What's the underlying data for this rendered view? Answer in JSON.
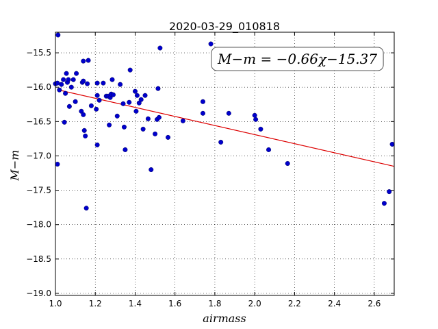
{
  "chart_data": {
    "type": "scatter",
    "title": "2020-03-29_010818",
    "xlabel": "airmass",
    "ylabel": "M−m",
    "xlim": [
      1.0,
      2.7
    ],
    "ylim": [
      -19.03,
      -15.2
    ],
    "y_inverted": true,
    "x_ticks": [
      1.0,
      1.2,
      1.4,
      1.6,
      1.8,
      2.0,
      2.2,
      2.4,
      2.6
    ],
    "x_tick_labels": [
      "1.0",
      "1.2",
      "1.4",
      "1.6",
      "1.8",
      "2.0",
      "2.2",
      "2.4",
      "2.6"
    ],
    "y_ticks": [
      -15.5,
      -16.0,
      -16.5,
      -17.0,
      -17.5,
      -18.0,
      -18.5,
      -19.0
    ],
    "y_tick_labels": [
      "−15.5",
      "−16.0",
      "−16.5",
      "−17.0",
      "−17.5",
      "−18.0",
      "−18.5",
      "−19.0"
    ],
    "grid": true,
    "colors": {
      "points": "#0000cc",
      "fit_line": "#dd0000"
    },
    "annotation": "M−m = −0.66χ−15.37",
    "fit": {
      "slope": -0.66,
      "intercept": -15.37
    },
    "series": [
      {
        "points": [
          [
            1.0,
            -15.95
          ],
          [
            1.01,
            -17.12
          ],
          [
            1.01,
            -15.94
          ],
          [
            1.013,
            -15.24
          ],
          [
            1.02,
            -16.04
          ],
          [
            1.03,
            -15.96
          ],
          [
            1.04,
            -15.89
          ],
          [
            1.045,
            -16.51
          ],
          [
            1.05,
            -16.09
          ],
          [
            1.055,
            -15.8
          ],
          [
            1.06,
            -15.93
          ],
          [
            1.065,
            -15.89
          ],
          [
            1.07,
            -16.28
          ],
          [
            1.08,
            -16.0
          ],
          [
            1.09,
            -15.89
          ],
          [
            1.1,
            -16.21
          ],
          [
            1.105,
            -15.8
          ],
          [
            1.13,
            -16.35
          ],
          [
            1.135,
            -15.93
          ],
          [
            1.14,
            -15.91
          ],
          [
            1.14,
            -16.4
          ],
          [
            1.14,
            -15.62
          ],
          [
            1.145,
            -16.63
          ],
          [
            1.15,
            -16.71
          ],
          [
            1.155,
            -17.76
          ],
          [
            1.16,
            -15.95
          ],
          [
            1.165,
            -15.61
          ],
          [
            1.18,
            -16.27
          ],
          [
            1.205,
            -16.32
          ],
          [
            1.21,
            -15.94
          ],
          [
            1.21,
            -16.12
          ],
          [
            1.21,
            -16.84
          ],
          [
            1.22,
            -16.19
          ],
          [
            1.24,
            -15.94
          ],
          [
            1.255,
            -16.13
          ],
          [
            1.265,
            -16.13
          ],
          [
            1.27,
            -16.55
          ],
          [
            1.275,
            -16.15
          ],
          [
            1.28,
            -16.1
          ],
          [
            1.285,
            -15.89
          ],
          [
            1.29,
            -16.11
          ],
          [
            1.31,
            -16.42
          ],
          [
            1.325,
            -15.96
          ],
          [
            1.34,
            -16.24
          ],
          [
            1.345,
            -16.58
          ],
          [
            1.35,
            -16.91
          ],
          [
            1.37,
            -16.22
          ],
          [
            1.375,
            -15.75
          ],
          [
            1.4,
            -16.06
          ],
          [
            1.405,
            -16.35
          ],
          [
            1.41,
            -16.12
          ],
          [
            1.42,
            -16.23
          ],
          [
            1.43,
            -16.18
          ],
          [
            1.44,
            -16.61
          ],
          [
            1.45,
            -16.12
          ],
          [
            1.465,
            -16.46
          ],
          [
            1.48,
            -17.2
          ],
          [
            1.5,
            -16.68
          ],
          [
            1.51,
            -16.47
          ],
          [
            1.515,
            -16.02
          ],
          [
            1.52,
            -16.44
          ],
          [
            1.525,
            -15.43
          ],
          [
            1.565,
            -16.73
          ],
          [
            1.64,
            -16.49
          ],
          [
            1.74,
            -16.21
          ],
          [
            1.74,
            -16.38
          ],
          [
            1.78,
            -15.37
          ],
          [
            1.83,
            -16.8
          ],
          [
            1.87,
            -16.38
          ],
          [
            2.0,
            -16.41
          ],
          [
            2.005,
            -16.47
          ],
          [
            2.03,
            -16.61
          ],
          [
            2.07,
            -16.91
          ],
          [
            2.165,
            -17.11
          ],
          [
            2.65,
            -17.69
          ],
          [
            2.675,
            -17.52
          ],
          [
            2.69,
            -16.83
          ]
        ]
      }
    ]
  }
}
